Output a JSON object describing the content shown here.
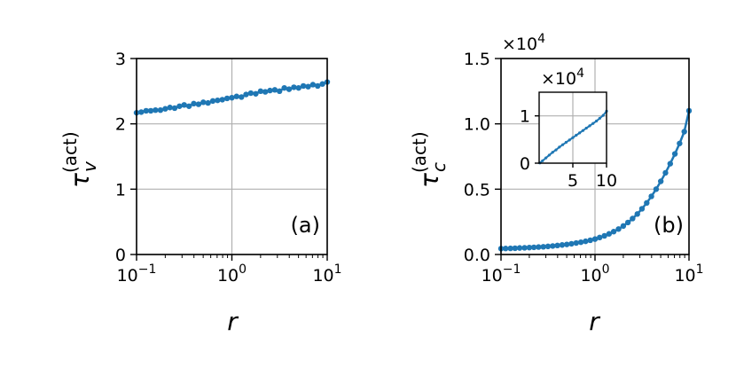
{
  "chart_data": [
    {
      "type": "line",
      "panel_label": "(a)",
      "xlabel": "r",
      "ylabel": "τ_v^(act)",
      "x_scale": "log",
      "xlim": [
        0.1,
        10
      ],
      "ylim": [
        0,
        3
      ],
      "x_ticks": [
        0.1,
        1,
        10
      ],
      "x_tick_labels": [
        {
          "base": "10",
          "exp": "−1"
        },
        {
          "base": "10",
          "exp": "0"
        },
        {
          "base": "10",
          "exp": "1"
        }
      ],
      "y_ticks": [
        0,
        1,
        2,
        3
      ],
      "y_tick_labels": [
        "0",
        "1",
        "2",
        "3"
      ],
      "grid": true,
      "marker": "dot",
      "color": "#1f77b4",
      "series": [
        {
          "x": [
            0.1,
            0.112,
            0.126,
            0.141,
            0.158,
            0.178,
            0.2,
            0.224,
            0.251,
            0.282,
            0.316,
            0.355,
            0.398,
            0.447,
            0.501,
            0.562,
            0.631,
            0.708,
            0.794,
            0.891,
            1.0,
            1.12,
            1.26,
            1.41,
            1.58,
            1.78,
            2.0,
            2.24,
            2.51,
            2.82,
            3.16,
            3.55,
            3.98,
            4.47,
            5.01,
            5.62,
            6.31,
            7.08,
            7.94,
            8.91,
            10.0
          ],
          "y": [
            2.17,
            2.18,
            2.2,
            2.2,
            2.21,
            2.21,
            2.23,
            2.25,
            2.24,
            2.27,
            2.29,
            2.27,
            2.31,
            2.3,
            2.33,
            2.32,
            2.35,
            2.36,
            2.37,
            2.39,
            2.4,
            2.42,
            2.41,
            2.45,
            2.47,
            2.46,
            2.5,
            2.49,
            2.51,
            2.52,
            2.5,
            2.55,
            2.53,
            2.56,
            2.55,
            2.58,
            2.57,
            2.6,
            2.58,
            2.61,
            2.64
          ]
        }
      ]
    },
    {
      "type": "line",
      "panel_label": "(b)",
      "xlabel": "r",
      "ylabel": "τ_c^(act)",
      "x_scale": "log",
      "xlim": [
        0.1,
        10
      ],
      "ylim": [
        0,
        1.5
      ],
      "y_multiplier": "×10^4",
      "x_ticks": [
        0.1,
        1,
        10
      ],
      "x_tick_labels": [
        {
          "base": "10",
          "exp": "−1"
        },
        {
          "base": "10",
          "exp": "0"
        },
        {
          "base": "10",
          "exp": "1"
        }
      ],
      "y_ticks": [
        0,
        0.5,
        1.0,
        1.5
      ],
      "y_tick_labels": [
        "0.0",
        "0.5",
        "1.0",
        "1.5"
      ],
      "grid": true,
      "marker": "dot",
      "color": "#1f77b4",
      "series": [
        {
          "x": [
            0.1,
            0.112,
            0.126,
            0.141,
            0.158,
            0.178,
            0.2,
            0.224,
            0.251,
            0.282,
            0.316,
            0.355,
            0.398,
            0.447,
            0.501,
            0.562,
            0.631,
            0.708,
            0.794,
            0.891,
            1.0,
            1.12,
            1.26,
            1.41,
            1.58,
            1.78,
            2.0,
            2.24,
            2.51,
            2.82,
            3.16,
            3.55,
            3.98,
            4.47,
            5.01,
            5.62,
            6.31,
            7.08,
            7.94,
            8.91,
            10.0
          ],
          "y": [
            0.045,
            0.046,
            0.047,
            0.048,
            0.05,
            0.051,
            0.053,
            0.055,
            0.057,
            0.059,
            0.062,
            0.065,
            0.069,
            0.073,
            0.077,
            0.082,
            0.088,
            0.094,
            0.101,
            0.109,
            0.118,
            0.13,
            0.143,
            0.158,
            0.175,
            0.195,
            0.218,
            0.245,
            0.275,
            0.31,
            0.35,
            0.395,
            0.445,
            0.5,
            0.56,
            0.625,
            0.695,
            0.77,
            0.85,
            0.94,
            1.1
          ]
        }
      ],
      "inset": {
        "type": "line",
        "x_scale": "linear",
        "xlim": [
          0,
          10
        ],
        "ylim": [
          0,
          1.5
        ],
        "y_multiplier": "×10^4",
        "x_ticks": [
          5,
          10
        ],
        "x_tick_labels": [
          "5",
          "10"
        ],
        "y_ticks": [
          0,
          1
        ],
        "y_tick_labels": [
          "0",
          "1"
        ],
        "grid": true,
        "series": [
          {
            "x": [
              0.1,
              0.5,
              1,
              1.5,
              2,
              2.5,
              3,
              3.5,
              4,
              4.5,
              5,
              5.5,
              6,
              6.5,
              7,
              7.5,
              8,
              8.5,
              9,
              9.5,
              10
            ],
            "y": [
              0.005,
              0.05,
              0.11,
              0.17,
              0.23,
              0.28,
              0.34,
              0.39,
              0.44,
              0.49,
              0.54,
              0.59,
              0.64,
              0.69,
              0.74,
              0.79,
              0.84,
              0.89,
              0.95,
              1.01,
              1.1
            ]
          }
        ]
      }
    }
  ]
}
